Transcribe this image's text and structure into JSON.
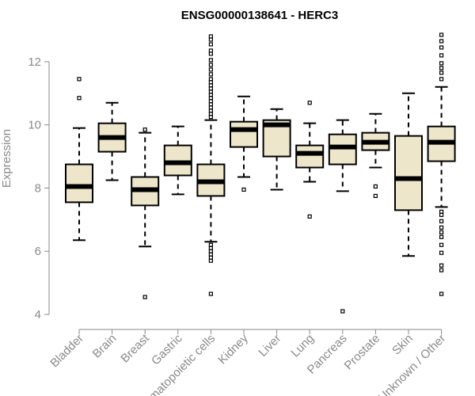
{
  "chart_data": {
    "type": "boxplot",
    "title": "ENSG00000138641 - HERC3",
    "xlabel": "",
    "ylabel": "Expression",
    "ylim": [
      4,
      13
    ],
    "yticks": [
      4,
      6,
      8,
      10,
      12
    ],
    "categories": [
      "Bladder",
      "Brain",
      "Breast",
      "Gastric",
      "Hematopoietic cells",
      "Kidney",
      "Liver",
      "Lung",
      "Pancreas",
      "Prostate",
      "Skin",
      "Unknown / Other"
    ],
    "boxes": [
      {
        "name": "Bladder",
        "whisker_low": 6.35,
        "q1": 7.55,
        "median": 8.05,
        "q3": 8.75,
        "whisker_high": 9.9,
        "outliers": [
          11.45,
          10.85
        ]
      },
      {
        "name": "Brain",
        "whisker_low": 8.25,
        "q1": 9.15,
        "median": 9.6,
        "q3": 10.05,
        "whisker_high": 10.7,
        "outliers": []
      },
      {
        "name": "Breast",
        "whisker_low": 6.15,
        "q1": 7.45,
        "median": 7.95,
        "q3": 8.35,
        "whisker_high": 9.75,
        "outliers": [
          9.85,
          4.55
        ]
      },
      {
        "name": "Gastric",
        "whisker_low": 7.8,
        "q1": 8.4,
        "median": 8.8,
        "q3": 9.35,
        "whisker_high": 9.95,
        "outliers": []
      },
      {
        "name": "Hematopoietic cells",
        "whisker_low": 6.3,
        "q1": 7.75,
        "median": 8.2,
        "q3": 8.75,
        "whisker_high": 10.15,
        "outliers": [
          12.8,
          12.7,
          12.55,
          12.35,
          12.25,
          12.05,
          11.9,
          11.75,
          11.6,
          11.45,
          11.35,
          11.25,
          11.15,
          11.05,
          10.95,
          10.85,
          10.75,
          10.65,
          10.55,
          10.45,
          10.35,
          10.25,
          6.2,
          6.1,
          6.0,
          5.9,
          5.8,
          5.7,
          4.65
        ]
      },
      {
        "name": "Kidney",
        "whisker_low": 8.35,
        "q1": 9.3,
        "median": 9.85,
        "q3": 10.1,
        "whisker_high": 10.9,
        "outliers": [
          7.95
        ]
      },
      {
        "name": "Liver",
        "whisker_low": 7.95,
        "q1": 9.0,
        "median": 10.0,
        "q3": 10.15,
        "whisker_high": 10.5,
        "outliers": []
      },
      {
        "name": "Lung",
        "whisker_low": 8.2,
        "q1": 8.65,
        "median": 9.1,
        "q3": 9.35,
        "whisker_high": 10.05,
        "outliers": [
          10.7,
          7.1
        ]
      },
      {
        "name": "Pancreas",
        "whisker_low": 7.9,
        "q1": 8.75,
        "median": 9.3,
        "q3": 9.7,
        "whisker_high": 10.15,
        "outliers": [
          4.1
        ]
      },
      {
        "name": "Prostate",
        "whisker_low": 8.65,
        "q1": 9.2,
        "median": 9.45,
        "q3": 9.75,
        "whisker_high": 10.35,
        "outliers": [
          8.05,
          7.75
        ]
      },
      {
        "name": "Skin",
        "whisker_low": 5.85,
        "q1": 7.3,
        "median": 8.3,
        "q3": 9.65,
        "whisker_high": 11.0,
        "outliers": []
      },
      {
        "name": "Unknown / Other",
        "whisker_low": 7.4,
        "q1": 8.85,
        "median": 9.45,
        "q3": 9.95,
        "whisker_high": 11.2,
        "outliers": [
          12.85,
          12.65,
          12.45,
          12.2,
          11.95,
          11.8,
          11.65,
          11.45,
          7.25,
          7.15,
          6.95,
          6.75,
          6.6,
          6.45,
          6.2,
          5.95,
          5.55,
          5.4,
          4.65
        ]
      }
    ]
  }
}
